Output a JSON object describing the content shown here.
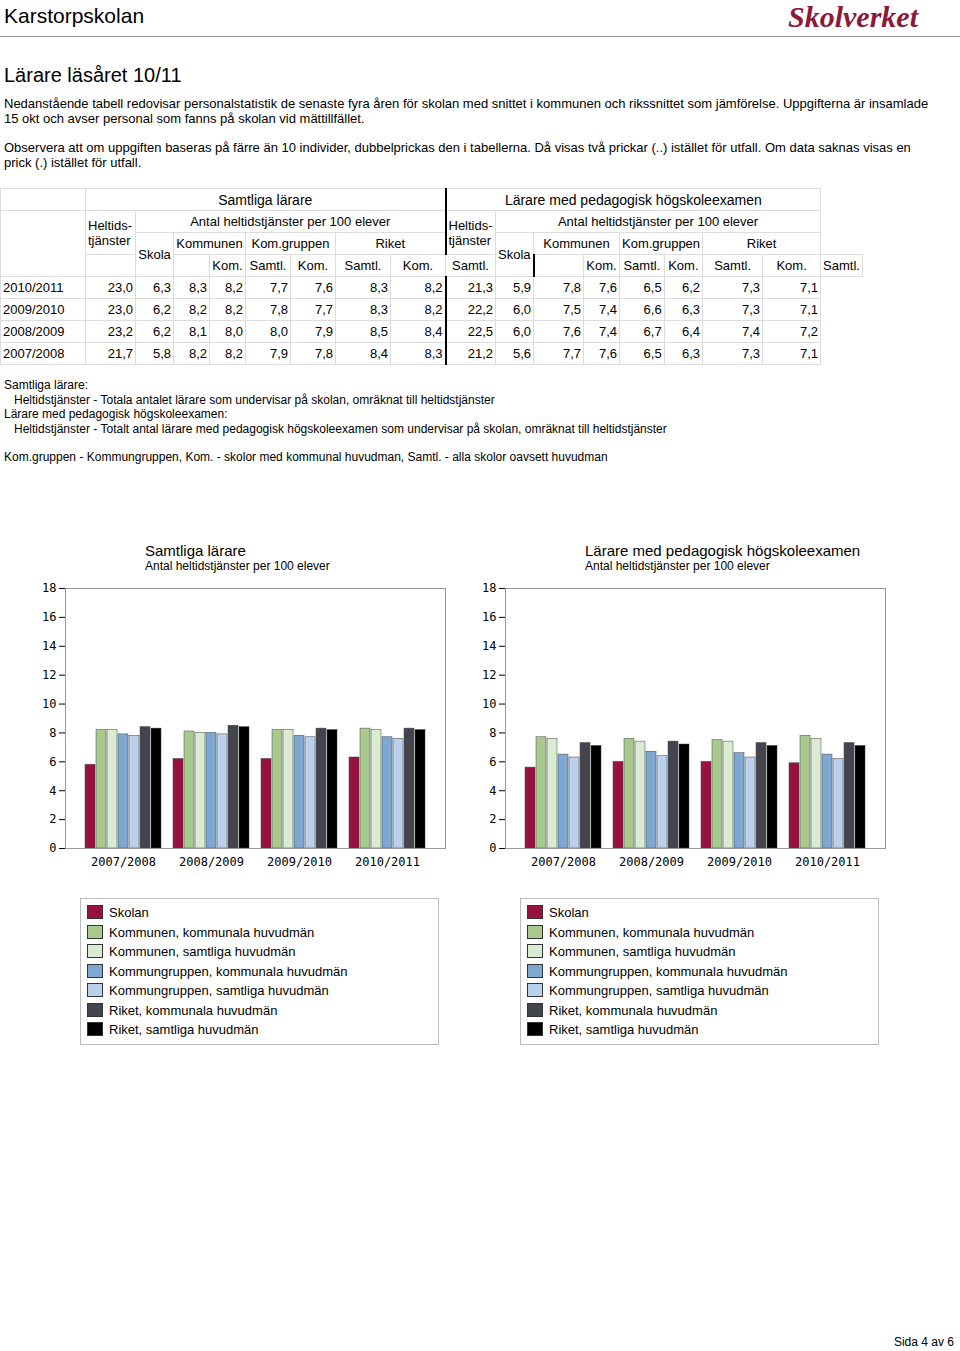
{
  "header": {
    "school": "Karstorpskolan",
    "logo": "Skolverket"
  },
  "title": "Lärare läsåret 10/11",
  "paragraphs": [
    "Nedanstående tabell redovisar personalstatistik de senaste fyra åren för skolan med snittet i kommunen och rikssnittet som jämförelse. Uppgifterna är insamlade 15 okt och avser personal som fanns på skolan vid mättillfället.",
    "Observera att om uppgiften baseras på färre än 10 individer, dubbelprickas den i tabellerna. Då visas två prickar (..) istället för utfall. Om data saknas visas en prick (.) istället för utfall."
  ],
  "table": {
    "groups": [
      "Samtliga lärare",
      "Lärare med pedagogisk högskoleexamen"
    ],
    "total_heading": [
      "Heltids-",
      "tjänster"
    ],
    "measure": "Antal heltidstjänster per 100 elever",
    "levels": [
      "Skola",
      "Kommunen",
      "Kom.gruppen",
      "Riket"
    ],
    "sublevels": [
      "Kom.",
      "Samtl."
    ],
    "rows": [
      {
        "year": "2010/2011",
        "values": [
          "23,0",
          "6,3",
          "8,3",
          "8,2",
          "7,7",
          "7,6",
          "8,3",
          "8,2",
          "21,3",
          "5,9",
          "7,8",
          "7,6",
          "6,5",
          "6,2",
          "7,3",
          "7,1"
        ]
      },
      {
        "year": "2009/2010",
        "values": [
          "23,0",
          "6,2",
          "8,2",
          "8,2",
          "7,8",
          "7,7",
          "8,3",
          "8,2",
          "22,2",
          "6,0",
          "7,5",
          "7,4",
          "6,6",
          "6,3",
          "7,3",
          "7,1"
        ]
      },
      {
        "year": "2008/2009",
        "values": [
          "23,2",
          "6,2",
          "8,1",
          "8,0",
          "8,0",
          "7,9",
          "8,5",
          "8,4",
          "22,5",
          "6,0",
          "7,6",
          "7,4",
          "6,7",
          "6,4",
          "7,4",
          "7,2"
        ]
      },
      {
        "year": "2007/2008",
        "values": [
          "21,7",
          "5,8",
          "8,2",
          "8,2",
          "7,9",
          "7,8",
          "8,4",
          "8,3",
          "21,2",
          "5,6",
          "7,7",
          "7,6",
          "6,5",
          "6,3",
          "7,3",
          "7,1"
        ]
      }
    ]
  },
  "notes": [
    {
      "text": "Samtliga lärare:",
      "indent": false
    },
    {
      "text": "Heltidstjänster - Totala antalet lärare som undervisar på skolan, omräknat till heltidstjänster",
      "indent": true
    },
    {
      "text": "Lärare med pedagogisk högskoleexamen:",
      "indent": false
    },
    {
      "text": "Heltidstjänster - Totalt antal lärare med pedagogisk högskoleexamen som undervisar på skolan, omräknat till heltidstjänster",
      "indent": true
    },
    {
      "text": "Kom.gruppen - Kommungruppen, Kom. - skolor med kommunal huvudman, Samtl. - alla skolor oavsett huvudman",
      "indent": false
    }
  ],
  "chart_data": [
    {
      "type": "bar",
      "title": "Samtliga lärare",
      "subtitle": "Antal heltidstjänster per 100 elever",
      "categories": [
        "2007/2008",
        "2008/2009",
        "2009/2010",
        "2010/2011"
      ],
      "series": [
        {
          "name": "Skolan",
          "color": "#99123f",
          "values": [
            5.8,
            6.2,
            6.2,
            6.3
          ]
        },
        {
          "name": "Kommunen, kommunala huvudmän",
          "color": "#a9c98f",
          "values": [
            8.2,
            8.1,
            8.2,
            8.3
          ]
        },
        {
          "name": "Kommunen, samtliga huvudmän",
          "color": "#d9ebd0",
          "values": [
            8.2,
            8.0,
            8.2,
            8.2
          ]
        },
        {
          "name": "Kommungruppen, kommunala huvudmän",
          "color": "#7ea7d1",
          "values": [
            7.9,
            8.0,
            7.8,
            7.7
          ]
        },
        {
          "name": "Kommungruppen, samtliga huvudmän",
          "color": "#b9d1ec",
          "values": [
            7.8,
            7.9,
            7.7,
            7.6
          ]
        },
        {
          "name": "Riket, kommunala huvudmän",
          "color": "#44444c",
          "values": [
            8.4,
            8.5,
            8.3,
            8.3
          ]
        },
        {
          "name": "Riket, samtliga huvudmän",
          "color": "#000000",
          "values": [
            8.3,
            8.4,
            8.2,
            8.2
          ]
        }
      ],
      "ylim": [
        0,
        18
      ],
      "yticks": [
        0,
        2,
        4,
        6,
        8,
        10,
        12,
        14,
        16,
        18
      ],
      "grid": false,
      "legend": "bottom"
    },
    {
      "type": "bar",
      "title": "Lärare med pedagogisk högskoleexamen",
      "subtitle": "Antal heltidstjänster per 100 elever",
      "categories": [
        "2007/2008",
        "2008/2009",
        "2009/2010",
        "2010/2011"
      ],
      "series": [
        {
          "name": "Skolan",
          "color": "#99123f",
          "values": [
            5.6,
            6.0,
            6.0,
            5.9
          ]
        },
        {
          "name": "Kommunen, kommunala huvudmän",
          "color": "#a9c98f",
          "values": [
            7.7,
            7.6,
            7.5,
            7.8
          ]
        },
        {
          "name": "Kommunen, samtliga huvudmän",
          "color": "#d9ebd0",
          "values": [
            7.6,
            7.4,
            7.4,
            7.6
          ]
        },
        {
          "name": "Kommungruppen, kommunala huvudmän",
          "color": "#7ea7d1",
          "values": [
            6.5,
            6.7,
            6.6,
            6.5
          ]
        },
        {
          "name": "Kommungruppen, samtliga huvudmän",
          "color": "#b9d1ec",
          "values": [
            6.3,
            6.4,
            6.3,
            6.2
          ]
        },
        {
          "name": "Riket, kommunala huvudmän",
          "color": "#44444c",
          "values": [
            7.3,
            7.4,
            7.3,
            7.3
          ]
        },
        {
          "name": "Riket, samtliga huvudmän",
          "color": "#000000",
          "values": [
            7.1,
            7.2,
            7.1,
            7.1
          ]
        }
      ],
      "ylim": [
        0,
        18
      ],
      "yticks": [
        0,
        2,
        4,
        6,
        8,
        10,
        12,
        14,
        16,
        18
      ],
      "grid": false,
      "legend": "bottom"
    }
  ],
  "footer": "Sida 4 av 6"
}
